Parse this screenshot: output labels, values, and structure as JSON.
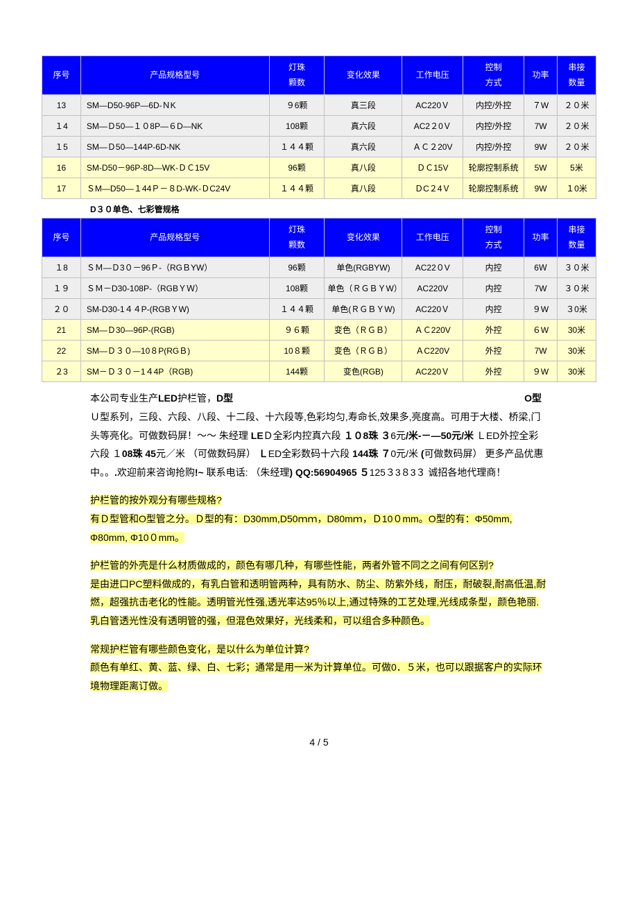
{
  "table1": {
    "headers": [
      "序号",
      "产品规格型号",
      "灯珠\n颗数",
      "变化效果",
      "工作电压",
      "控制\n方式",
      "功率",
      "串接\n数量"
    ],
    "rows": [
      {
        "hl": false,
        "cells": [
          "13",
          "SM—D50-96P—6D-ＮK",
          "９6颗",
          "真三段",
          "AC220Ｖ",
          "内控/外控",
          "７W",
          "２０米"
        ]
      },
      {
        "hl": false,
        "cells": [
          "１4",
          "SM—Ｄ50—１０8P—６D—NK",
          "108颗",
          "真六段",
          "AC2２0Ｖ",
          "内控/外控",
          "7W",
          "２０米"
        ]
      },
      {
        "hl": false,
        "cells": [
          "１5",
          "SM—Ｄ50—144P-6D-NK",
          "１４４颗",
          "真六段",
          "ＡＣ２20V",
          "内控/外控",
          "9W",
          "２０米"
        ]
      },
      {
        "hl": true,
        "cells": [
          "16",
          "SM-D50－96P-8D—WK-ＤＣ15V",
          "96颗",
          "真八段",
          "ＤＣ15V",
          "轮廓控制系统",
          "5W",
          "5米"
        ]
      },
      {
        "hl": true,
        "cells": [
          "17",
          "ＳM—D50—１44Ｐ－８D-WK-ＤC24V",
          "１４４颗",
          "真八段",
          "ＤC２4Ｖ",
          "轮廓控制系统",
          "9W",
          "１0米"
        ]
      }
    ]
  },
  "subtitle": "D３０单色、七彩管规格",
  "table2": {
    "headers": [
      "序号",
      "产品规格型号",
      "灯珠\n颗数",
      "变化效果",
      "工作电压",
      "控制\n方式",
      "功率",
      "串接\n数量"
    ],
    "rows": [
      {
        "hl": false,
        "cells": [
          "１8",
          "ＳＭ—Ｄ3０－96Ｐ-（RGＢYW）",
          "96颗",
          "单色(RGBYW)",
          "AC22０V",
          "内控",
          "6Ｗ",
          "３０米"
        ]
      },
      {
        "hl": false,
        "cells": [
          "１９",
          "ＳＭ－D30-108P-（RGBＹＷ）",
          "108颗",
          "单色（ＲＧＢＹW）",
          "AC220V",
          "内控",
          "7W",
          "３０米"
        ]
      },
      {
        "hl": false,
        "cells": [
          "２０",
          "SM-D30-1４４P-(RGBＹW)",
          "１４４颗",
          "单色(ＲＧＢＹW)",
          "AC220Ｖ",
          "内控",
          "９W",
          "３0米"
        ]
      },
      {
        "hl": true,
        "cells": [
          "21",
          "SM—Ｄ30—96P-(RGB)",
          "９６颗",
          "变色（ＲＧＢ）",
          "ＡＣ220V",
          "外控",
          "６W",
          "30米"
        ]
      },
      {
        "hl": true,
        "cells": [
          "22",
          "SM—Ｄ３０—10８P(RGＢ)",
          "10８颗",
          "变色（ＲＧＢ）",
          "ＡC220V",
          "外控",
          "7W",
          "30米"
        ]
      },
      {
        "hl": true,
        "cells": [
          "２3",
          "SM－Ｄ３０－1４4P（RGB)",
          "144颗",
          "变色(RGB)",
          "AC220Ｖ",
          "外控",
          "９W",
          "30米"
        ]
      }
    ]
  },
  "para_intro_pre": "本公司专业生产",
  "para_intro_led": "LED",
  "para_intro_after_led": "护栏管，",
  "para_intro_dmodel": "D型",
  "para_intro_omodel": "O型",
  "para_line2": "Ｕ型系列，三段、六段、八段、十二段、十六段等,色彩均匀,寿命长,效果多,亮度高。可用于大楼、桥梁,门头等亮化。可做数码屏！～～ 朱经理 ",
  "para_bold1": "LE",
  "para_after_bold1": "Ｄ全彩内控真六段 ",
  "para_bold_108": "１０8珠 ３",
  "para_after_108": "6元",
  "para_bold_permeter": "/米-－—50元/米",
  "para_after_50": " ＬED外控全彩六段 １",
  "para_bold_08": "08珠 45",
  "para_after_45": "元／米 （可做数码屏）",
  "para_bold_led2": " Ｌ",
  "para_after_led2": "ED全彩数码十六段 ",
  "para_bold_144": "144珠  ７",
  "para_after_144": "0元/米 ",
  "para_bold_paren": "(",
  "para_after_paren": "可做数码屏）  更多产品优惠中。。",
  "para_bold_dot": ".",
  "para_after_dot": "欢迎前来咨询抢购",
  "para_bold_excl": "!~",
  "para_after_excl": "   联系电话:     （朱经理",
  "para_bold_qq": ") QQ:56904965 ５",
  "para_after_qq": "125３3８3３ 诚招各地代理商！",
  "q1_label": "护",
  "q1_rest": "栏管的按外观分有哪些规格?",
  "a1": "有Ｄ型管和O型管之分。Ｄ型的有：D30mm,D50ｍｍ，D80mｍ，Ｄ10０mm。O型的有：Φ50mm,  Φ80mm,   Φ10０mm。",
  "q2_label": "护栏管",
  "q2_rest": "的外壳是什么材质做成的，颜色有哪几种，有哪些性能，两者外管不同之之间有何区别?",
  "a2": "是由进口PC塑料做成的，有乳白管和透明管两种，具有防水、防尘、防紫外线，耐压，耐破裂,耐高低温,耐燃，超强抗击老化的性能。透明管光性强,透光率达95％以上,通过特殊的工艺处理,光线成条型，颜色艳丽.乳白管透光性没有透明管的强，但混色效果好，光线柔和，可以组合多种颜色。",
  "q3": "常规护栏管有哪些颜色变化，是以什么为单位计算?",
  "a3": "颜色有单红、黄、蓝、绿、白、七彩；通常是用一米为计算单位。可做0．５米，也可以跟据客户的实际环境物理距离订做。",
  "footer": "4 / 5",
  "colwidths": [
    "7%",
    "34%",
    "10%",
    "14%",
    "11%",
    "11%",
    "6%",
    "7%"
  ]
}
